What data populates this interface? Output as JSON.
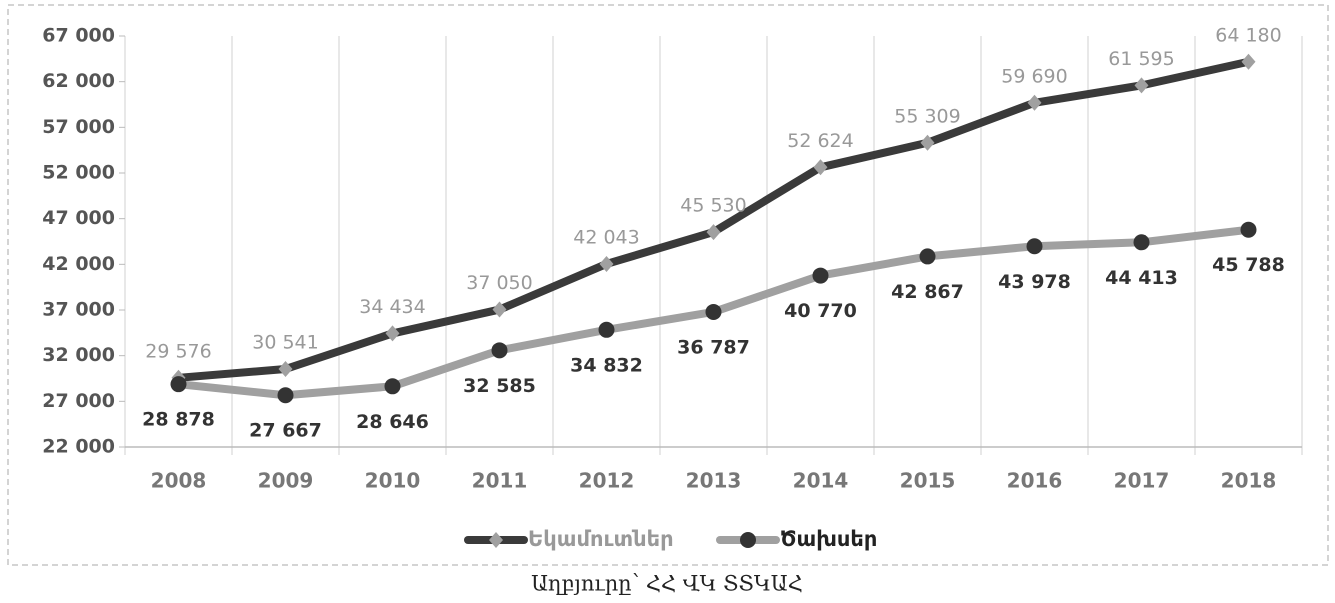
{
  "chart_data": {
    "type": "line",
    "categories": [
      "2008",
      "2009",
      "2010",
      "2011",
      "2012",
      "2013",
      "2014",
      "2015",
      "2016",
      "2017",
      "2018"
    ],
    "series": [
      {
        "name": "Եկամուտներ",
        "color": "#3a3a3a",
        "marker_color": "#a0a0a0",
        "marker": "diamond",
        "values": [
          29576,
          30541,
          34434,
          37050,
          42043,
          45530,
          52624,
          55309,
          59690,
          61595,
          64180
        ],
        "value_labels": [
          "29 576",
          "30 541",
          "34 434",
          "37 050",
          "42 043",
          "45 530",
          "52 624",
          "55 309",
          "59 690",
          "61 595",
          "64 180"
        ]
      },
      {
        "name": "Ծախսեր",
        "color": "#a0a0a0",
        "marker_color": "#333333",
        "marker": "circle",
        "values": [
          28878,
          27667,
          28646,
          32585,
          34832,
          36787,
          40770,
          42867,
          43978,
          44413,
          45788
        ],
        "value_labels": [
          "28 878",
          "27 667",
          "28 646",
          "32 585",
          "34 832",
          "36 787",
          "40 770",
          "42 867",
          "43 978",
          "44 413",
          "45 788"
        ]
      }
    ],
    "ylim": [
      22000,
      67000
    ],
    "yticks": [
      {
        "value": 22000,
        "label": "22 000"
      },
      {
        "value": 27000,
        "label": "27 000"
      },
      {
        "value": 32000,
        "label": "32 000"
      },
      {
        "value": 37000,
        "label": "37 000"
      },
      {
        "value": 42000,
        "label": "42 000"
      },
      {
        "value": 47000,
        "label": "47 000"
      },
      {
        "value": 52000,
        "label": "52 000"
      },
      {
        "value": 57000,
        "label": "57 000"
      },
      {
        "value": 62000,
        "label": "62 000"
      },
      {
        "value": 67000,
        "label": "67 000"
      }
    ],
    "legend": "bottom",
    "source": "Աղբյուրը՝ ՀՀ ՎԿ ՏՏԿԱՀ"
  }
}
